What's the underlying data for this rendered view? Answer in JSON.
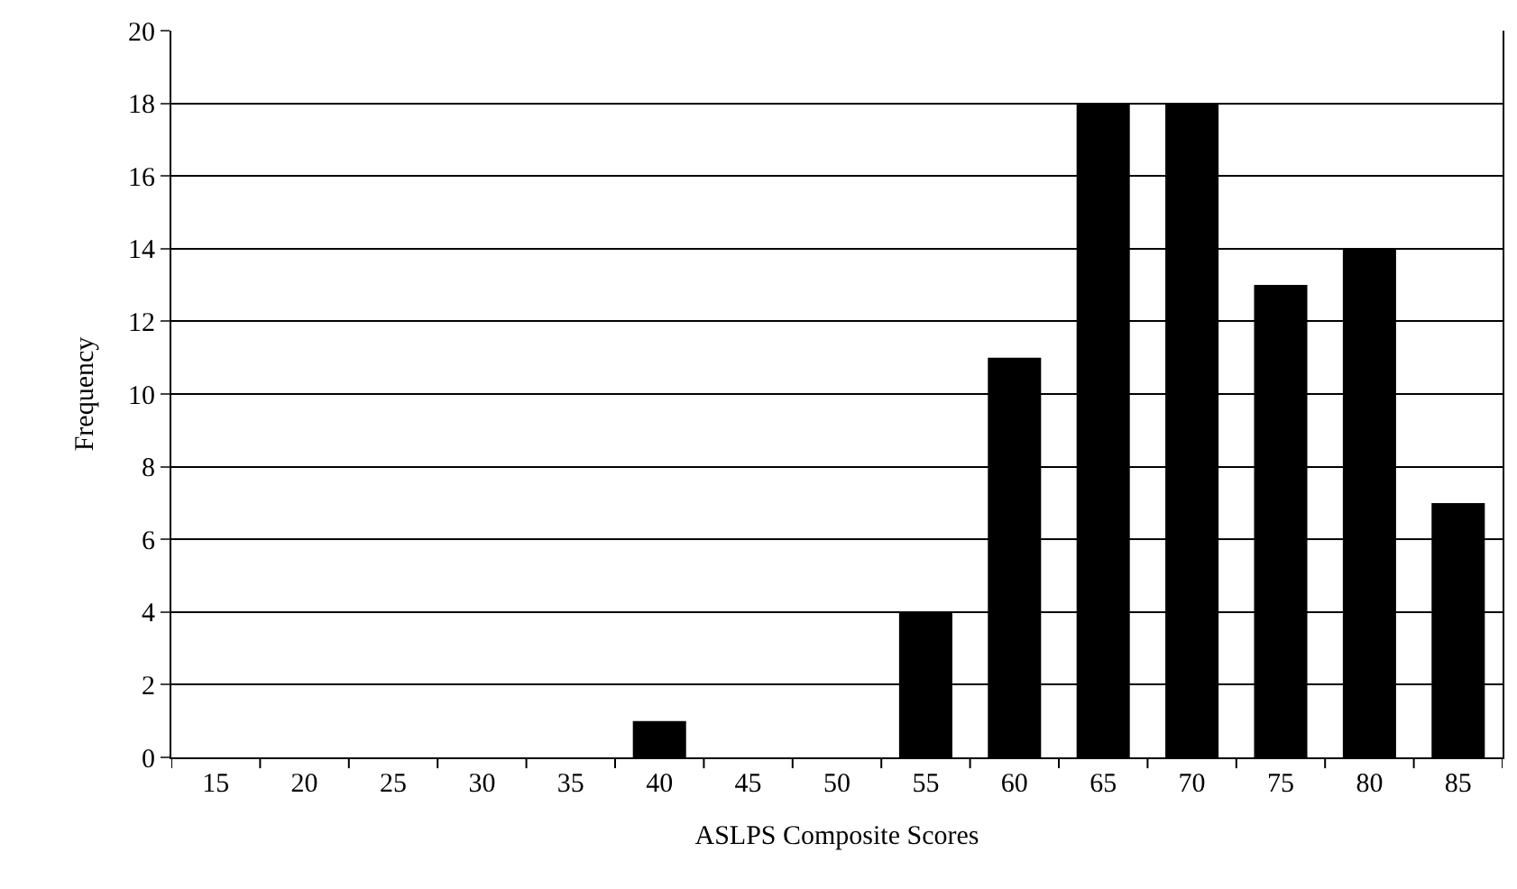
{
  "chart_data": {
    "type": "bar",
    "xlabel": "ASLPS Composite Scores",
    "ylabel": "Frequency",
    "categories": [
      "15",
      "20",
      "25",
      "30",
      "35",
      "40",
      "45",
      "50",
      "55",
      "60",
      "65",
      "70",
      "75",
      "80",
      "85"
    ],
    "values": [
      0,
      0,
      0,
      0,
      0,
      1,
      0,
      0,
      4,
      11,
      18,
      18,
      13,
      14,
      7
    ],
    "color": "#000000",
    "ylim": [
      0,
      20
    ],
    "yticks": [
      0,
      2,
      4,
      6,
      8,
      10,
      12,
      14,
      16,
      18,
      20
    ],
    "grid": "y",
    "legend": false
  }
}
